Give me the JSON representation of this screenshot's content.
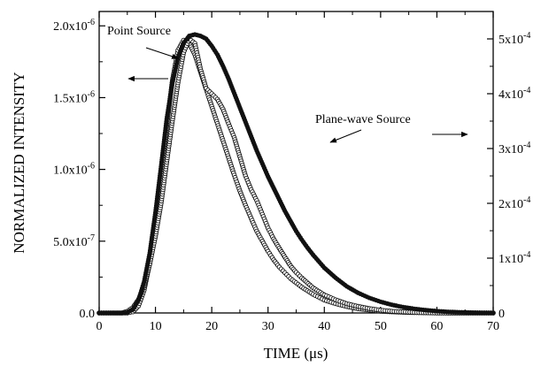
{
  "chart_data": {
    "type": "scatter",
    "title": "",
    "xlabel": "TIME (μs)",
    "ylabel": "NORMALIZED INTENSITY",
    "xlim": [
      0,
      70
    ],
    "ylim_left": [
      0,
      2.1e-06
    ],
    "ylim_right": [
      0,
      0.00055
    ],
    "grid": false,
    "x_ticks": [
      "0",
      "10",
      "20",
      "30",
      "40",
      "50",
      "60",
      "70"
    ],
    "y_left_ticks": [
      {
        "value": 0,
        "mantissa": "0.0",
        "exp": ""
      },
      {
        "value": 5e-07,
        "mantissa": "5.0x10",
        "exp": "-7"
      },
      {
        "value": 1e-06,
        "mantissa": "1.0x10",
        "exp": "-6"
      },
      {
        "value": 1.5e-06,
        "mantissa": "1.5x10",
        "exp": "-6"
      },
      {
        "value": 2e-06,
        "mantissa": "2.0x10",
        "exp": "-6"
      }
    ],
    "y_right_ticks": [
      {
        "value": 0,
        "mantissa": "0",
        "exp": ""
      },
      {
        "value": 0.0001,
        "mantissa": "1x10",
        "exp": "-4"
      },
      {
        "value": 0.0002,
        "mantissa": "2x10",
        "exp": "-4"
      },
      {
        "value": 0.0003,
        "mantissa": "3x10",
        "exp": "-4"
      },
      {
        "value": 0.0004,
        "mantissa": "4x10",
        "exp": "-4"
      },
      {
        "value": 0.0005,
        "mantissa": "5x10",
        "exp": "-4"
      }
    ],
    "annotations": {
      "point_source": "Point Source",
      "plane_wave_source": "Plane-wave Source"
    },
    "series": [
      {
        "name": "Point Source",
        "axis": "left",
        "marker": "open-circle",
        "x": [
          0,
          3,
          5,
          6,
          7,
          8,
          9,
          10,
          11,
          12,
          13,
          14,
          15,
          16,
          17,
          18,
          19,
          20,
          21,
          22,
          23,
          24,
          25,
          26,
          27,
          28,
          29,
          30,
          31,
          32,
          33,
          34,
          35,
          36,
          37,
          38,
          40,
          42,
          44,
          46,
          48,
          50,
          52,
          54,
          56,
          58,
          60,
          62,
          64,
          66,
          68,
          70
        ],
        "y": [
          0,
          0,
          0,
          8e-09,
          5e-08,
          1.6e-07,
          3.5e-07,
          6.2e-07,
          9.5e-07,
          1.3e-06,
          1.62e-06,
          1.83e-06,
          1.9e-06,
          1.88e-06,
          1.8e-06,
          1.68e-06,
          1.56e-06,
          1.44e-06,
          1.32e-06,
          1.2e-06,
          1.08e-06,
          9.6e-07,
          8.5e-07,
          7.5e-07,
          6.6e-07,
          5.7e-07,
          5e-07,
          4.3e-07,
          3.7e-07,
          3.2e-07,
          2.8e-07,
          2.4e-07,
          2.1e-07,
          1.8e-07,
          1.55e-07,
          1.3e-07,
          9e-08,
          6.5e-08,
          4.5e-08,
          3e-08,
          2e-08,
          1.2e-08,
          8e-09,
          5e-09,
          3e-09,
          2e-09,
          1e-09,
          0,
          0,
          0,
          0,
          0
        ]
      },
      {
        "name": "Plane-wave Source",
        "axis": "right",
        "marker": "open-circle",
        "x": [
          0,
          4,
          5,
          6,
          7,
          8,
          9,
          10,
          11,
          12,
          13,
          14,
          15,
          16,
          17,
          18,
          19,
          20,
          21,
          22,
          23,
          24,
          25,
          26,
          27,
          28,
          29,
          30,
          31,
          32,
          33,
          34,
          35,
          36,
          38,
          40,
          42,
          44,
          46,
          48,
          50,
          52,
          54,
          56,
          58,
          60,
          62,
          64,
          66,
          68,
          70
        ],
        "y": [
          0,
          0,
          3e-06,
          1e-05,
          2.5e-05,
          5e-05,
          9e-05,
          0.00014,
          0.0002,
          0.000275,
          0.00035,
          0.00042,
          0.000475,
          0.0005,
          0.000492,
          0.000445,
          0.00041,
          0.0004,
          0.00039,
          0.000372,
          0.000345,
          0.00032,
          0.000285,
          0.00025,
          0.000225,
          0.000205,
          0.00018,
          0.000155,
          0.000135,
          0.000118,
          0.000102,
          8.6e-05,
          7.4e-05,
          6.4e-05,
          4.6e-05,
          3.3e-05,
          2.4e-05,
          1.7e-05,
          1.2e-05,
          8e-06,
          5e-06,
          3e-06,
          2e-06,
          1e-06,
          5e-07,
          0,
          0,
          0,
          0,
          0,
          0
        ]
      },
      {
        "name": "",
        "axis": "left",
        "marker": "filled-dot",
        "x": [
          0,
          4,
          5,
          6,
          7,
          8,
          9,
          10,
          11,
          12,
          13,
          14,
          15,
          16,
          17,
          18,
          19,
          20,
          21,
          22,
          23,
          24,
          25,
          26,
          27,
          28,
          29,
          30,
          31,
          32,
          33,
          34,
          35,
          36,
          37,
          38,
          40,
          42,
          44,
          46,
          48,
          50,
          52,
          54,
          56,
          58,
          60,
          62,
          64,
          66,
          68,
          70
        ],
        "y": [
          0,
          0,
          4e-09,
          2.5e-08,
          9e-08,
          2.2e-07,
          4.2e-07,
          7e-07,
          1.02e-06,
          1.35e-06,
          1.6e-06,
          1.78e-06,
          1.88e-06,
          1.93e-06,
          1.94e-06,
          1.93e-06,
          1.91e-06,
          1.86e-06,
          1.8e-06,
          1.72e-06,
          1.63e-06,
          1.53e-06,
          1.43e-06,
          1.33e-06,
          1.23e-06,
          1.13e-06,
          1.04e-06,
          9.5e-07,
          8.7e-07,
          7.9e-07,
          7.1e-07,
          6.4e-07,
          5.7e-07,
          5.1e-07,
          4.55e-07,
          4.05e-07,
          3.15e-07,
          2.45e-07,
          1.85e-07,
          1.4e-07,
          1.05e-07,
          7.8e-08,
          5.7e-08,
          4.1e-08,
          2.9e-08,
          2e-08,
          1.3e-08,
          8e-09,
          5e-09,
          3e-09,
          1e-09,
          0
        ]
      }
    ]
  }
}
